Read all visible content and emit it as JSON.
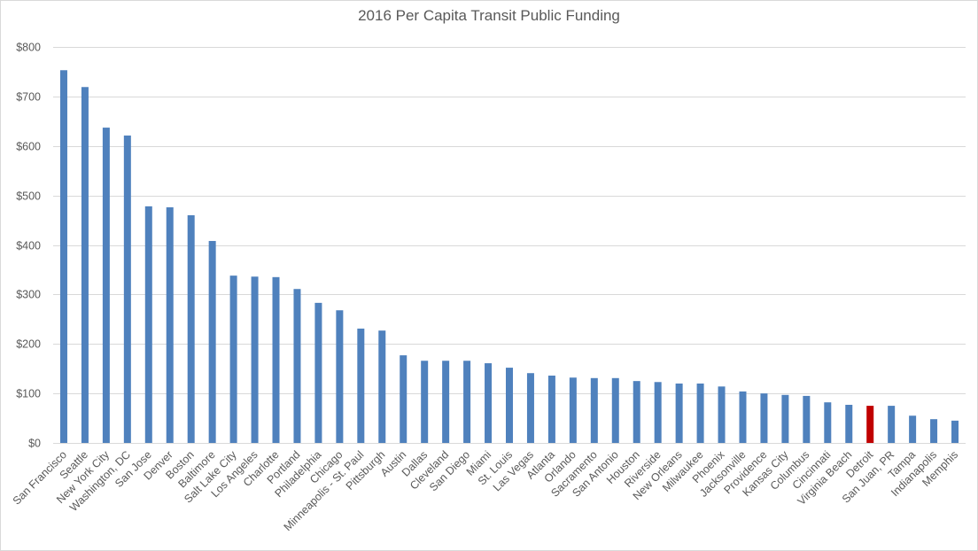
{
  "chart_data": {
    "type": "bar",
    "title": "2016 Per Capita Transit Public Funding",
    "xlabel": "",
    "ylabel": "",
    "ylim": [
      0,
      800
    ],
    "yticks": [
      "$0",
      "$100",
      "$200",
      "$300",
      "$400",
      "$500",
      "$600",
      "$700",
      "$800"
    ],
    "grid": true,
    "colors": {
      "default": "#4f81bd",
      "highlight": "#c00000"
    },
    "highlight": "Detroit",
    "categories": [
      "San Francisco",
      "Seattle",
      "New York City",
      "Washington, DC",
      "San Jose",
      "Denver",
      "Boston",
      "Baltimore",
      "Salt Lake City",
      "Los Angeles",
      "Charlotte",
      "Portland",
      "Philadelphia",
      "Chicago",
      "Minneapolis - St. Paul",
      "Pittsburgh",
      "Austin",
      "Dallas",
      "Cleveland",
      "San Diego",
      "Miami",
      "St. Louis",
      "Las Vegas",
      "Atlanta",
      "Orlando",
      "Sacramento",
      "San Antonio",
      "Houston",
      "Riverside",
      "New Orleans",
      "Milwaukee",
      "Phoenix",
      "Jacksonville",
      "Providence",
      "Kansas City",
      "Columbus",
      "Cincinnati",
      "Virginia Beach",
      "Detroit",
      "San Juan, PR",
      "Tampa",
      "Indianapolis",
      "Memphis"
    ],
    "values": [
      753,
      719,
      637,
      621,
      478,
      476,
      460,
      408,
      338,
      336,
      335,
      311,
      283,
      268,
      231,
      227,
      177,
      166,
      166,
      166,
      161,
      152,
      141,
      136,
      132,
      131,
      131,
      125,
      123,
      120,
      120,
      114,
      104,
      100,
      97,
      95,
      82,
      77,
      75,
      75,
      55,
      48,
      45
    ]
  }
}
